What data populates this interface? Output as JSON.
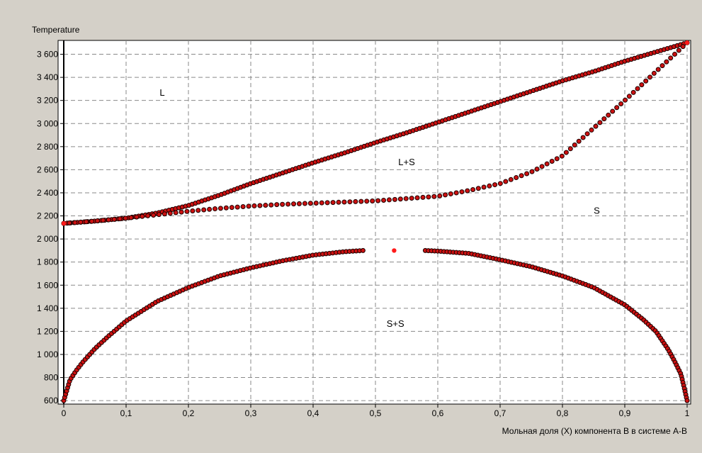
{
  "chart_data": {
    "type": "scatter",
    "ylabel": "Temperature",
    "xlabel": "Мольная доля (X) компонента B в системе A-B",
    "xlim": [
      0,
      1
    ],
    "ylim": [
      570,
      3720
    ],
    "x_ticks": [
      0,
      0.1,
      0.2,
      0.3,
      0.4,
      0.5,
      0.6,
      0.7,
      0.8,
      0.9,
      1
    ],
    "x_tick_labels": [
      "0",
      "0,1",
      "0,2",
      "0,3",
      "0,4",
      "0,5",
      "0,6",
      "0,7",
      "0,8",
      "0,9",
      "1"
    ],
    "y_ticks": [
      600,
      800,
      1000,
      1200,
      1400,
      1600,
      1800,
      2000,
      2200,
      2400,
      2600,
      2800,
      3000,
      3200,
      3400,
      3600
    ],
    "y_tick_labels": [
      "600",
      "800",
      "1 000",
      "1 200",
      "1 400",
      "1 600",
      "1 800",
      "2 000",
      "2 200",
      "2 400",
      "2 600",
      "2 800",
      "3 000",
      "3 200",
      "3 400",
      "3 600"
    ],
    "grid": true,
    "marker_color": "#cc1111",
    "highlight_color": "#ff1a1a",
    "series": [
      {
        "kind": "liquidus",
        "x": [
          0.0,
          0.05,
          0.1,
          0.15,
          0.2,
          0.25,
          0.3,
          0.35,
          0.4,
          0.45,
          0.5,
          0.55,
          0.6,
          0.65,
          0.7,
          0.75,
          0.8,
          0.85,
          0.9,
          0.95,
          1.0
        ],
        "y": [
          2135,
          2155,
          2180,
          2225,
          2290,
          2380,
          2480,
          2570,
          2660,
          2745,
          2835,
          2920,
          3010,
          3100,
          3190,
          3280,
          3370,
          3450,
          3540,
          3620,
          3700
        ]
      },
      {
        "kind": "solidus",
        "x": [
          0.0,
          0.05,
          0.1,
          0.15,
          0.2,
          0.25,
          0.3,
          0.35,
          0.4,
          0.45,
          0.5,
          0.55,
          0.6,
          0.65,
          0.7,
          0.75,
          0.8,
          0.85,
          0.9,
          0.95,
          1.0
        ],
        "y": [
          2135,
          2155,
          2180,
          2210,
          2240,
          2265,
          2285,
          2300,
          2310,
          2320,
          2330,
          2350,
          2370,
          2420,
          2480,
          2580,
          2720,
          2960,
          3200,
          3450,
          3700
        ]
      },
      {
        "kind": "miscibility-gap",
        "x": [
          0.0,
          0.005,
          0.01,
          0.02,
          0.03,
          0.05,
          0.07,
          0.1,
          0.15,
          0.2,
          0.25,
          0.3,
          0.35,
          0.4,
          0.45,
          0.48,
          0.58,
          0.6,
          0.65,
          0.7,
          0.75,
          0.8,
          0.85,
          0.9,
          0.93,
          0.95,
          0.97,
          0.98,
          0.99,
          0.995,
          1.0
        ],
        "y": [
          600,
          690,
          780,
          860,
          930,
          1050,
          1150,
          1290,
          1460,
          1580,
          1680,
          1750,
          1810,
          1860,
          1890,
          1900,
          1900,
          1895,
          1875,
          1820,
          1760,
          1680,
          1580,
          1430,
          1300,
          1200,
          1040,
          940,
          830,
          720,
          600
        ]
      }
    ],
    "highlight_points": [
      {
        "x": 0.0,
        "y": 2135
      },
      {
        "x": 0.53,
        "y": 1900
      },
      {
        "x": 1.0,
        "y": 3700
      }
    ],
    "region_labels": [
      {
        "text": "L",
        "x": 0.158,
        "y": 3240
      },
      {
        "text": "L+S",
        "x": 0.55,
        "y": 2640
      },
      {
        "text": "S",
        "x": 0.855,
        "y": 2220
      },
      {
        "text": "S+S",
        "x": 0.532,
        "y": 1240
      }
    ]
  }
}
